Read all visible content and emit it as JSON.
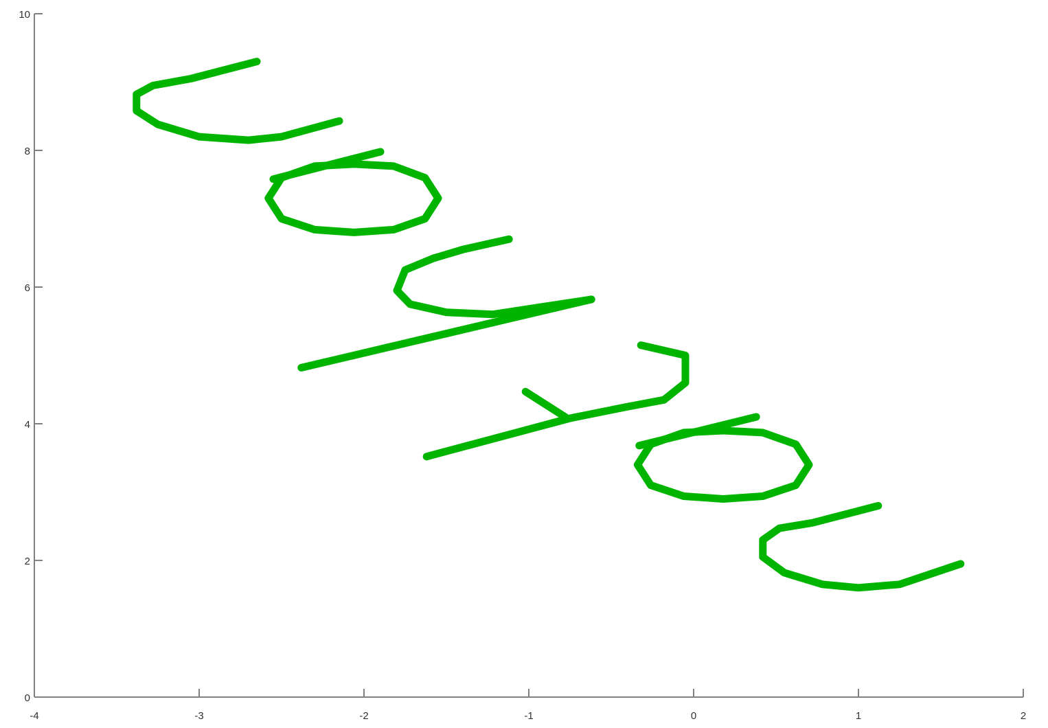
{
  "chart_data": {
    "type": "line",
    "title": "",
    "xlabel": "",
    "ylabel": "",
    "xlim": [
      -4,
      2
    ],
    "ylim": [
      0,
      10
    ],
    "x_ticks": [
      -4,
      -3,
      -2,
      -1,
      0,
      1,
      2
    ],
    "y_ticks": [
      0,
      2,
      4,
      6,
      8,
      10
    ],
    "x_tick_labels": [
      "-4",
      "-3",
      "-2",
      "-1",
      "0",
      "1",
      "2"
    ],
    "y_tick_labels": [
      "0",
      "2",
      "4",
      "6",
      "8",
      "10"
    ],
    "grid": false,
    "line_color": "#00b400",
    "series": [
      {
        "values": [
          [
            -2.65,
            9.3
          ],
          [
            -3.05,
            9.05
          ],
          [
            -3.28,
            8.95
          ],
          [
            -3.38,
            8.82
          ],
          [
            -3.38,
            8.58
          ],
          [
            -3.25,
            8.38
          ],
          [
            -3.0,
            8.2
          ],
          [
            -2.7,
            8.15
          ],
          [
            -2.5,
            8.2
          ],
          [
            -2.15,
            8.43
          ]
        ]
      },
      {
        "values": [
          [
            -2.55,
            7.58
          ],
          [
            -1.9,
            7.98
          ]
        ]
      },
      {
        "values": [
          [
            -2.06,
            7.8
          ],
          [
            -1.82,
            7.77
          ],
          [
            -1.63,
            7.6
          ],
          [
            -1.55,
            7.3
          ],
          [
            -1.63,
            7.0
          ],
          [
            -1.82,
            6.84
          ],
          [
            -2.06,
            6.8
          ],
          [
            -2.3,
            6.84
          ],
          [
            -2.5,
            7.0
          ],
          [
            -2.58,
            7.3
          ],
          [
            -2.5,
            7.6
          ],
          [
            -2.3,
            7.77
          ],
          [
            -2.06,
            7.8
          ]
        ]
      },
      {
        "values": [
          [
            -1.12,
            6.7
          ],
          [
            -1.4,
            6.55
          ],
          [
            -1.58,
            6.42
          ],
          [
            -1.75,
            6.25
          ],
          [
            -1.8,
            5.95
          ],
          [
            -1.72,
            5.75
          ],
          [
            -1.5,
            5.63
          ],
          [
            -1.22,
            5.6
          ],
          [
            -0.62,
            5.82
          ]
        ]
      },
      {
        "values": [
          [
            -0.62,
            5.82
          ],
          [
            -2.38,
            4.82
          ]
        ]
      },
      {
        "values": [
          [
            -0.32,
            5.15
          ],
          [
            -0.05,
            5.0
          ],
          [
            -0.05,
            4.6
          ],
          [
            -0.18,
            4.35
          ],
          [
            -0.4,
            4.25
          ],
          [
            -0.75,
            4.08
          ],
          [
            -1.62,
            3.52
          ]
        ]
      },
      {
        "values": [
          [
            -1.02,
            4.47
          ],
          [
            -0.78,
            4.1
          ]
        ]
      },
      {
        "values": [
          [
            -0.33,
            3.68
          ],
          [
            0.38,
            4.1
          ]
        ]
      },
      {
        "values": [
          [
            0.18,
            3.9
          ],
          [
            0.42,
            3.87
          ],
          [
            0.62,
            3.7
          ],
          [
            0.7,
            3.4
          ],
          [
            0.62,
            3.1
          ],
          [
            0.42,
            2.94
          ],
          [
            0.18,
            2.9
          ],
          [
            -0.06,
            2.94
          ],
          [
            -0.26,
            3.1
          ],
          [
            -0.34,
            3.4
          ],
          [
            -0.26,
            3.7
          ],
          [
            -0.06,
            3.87
          ],
          [
            0.18,
            3.9
          ]
        ]
      },
      {
        "values": [
          [
            1.12,
            2.8
          ],
          [
            0.72,
            2.55
          ],
          [
            0.52,
            2.47
          ],
          [
            0.42,
            2.3
          ],
          [
            0.42,
            2.05
          ],
          [
            0.55,
            1.82
          ],
          [
            0.78,
            1.65
          ],
          [
            1.0,
            1.6
          ],
          [
            1.25,
            1.65
          ],
          [
            1.62,
            1.95
          ]
        ]
      }
    ]
  }
}
